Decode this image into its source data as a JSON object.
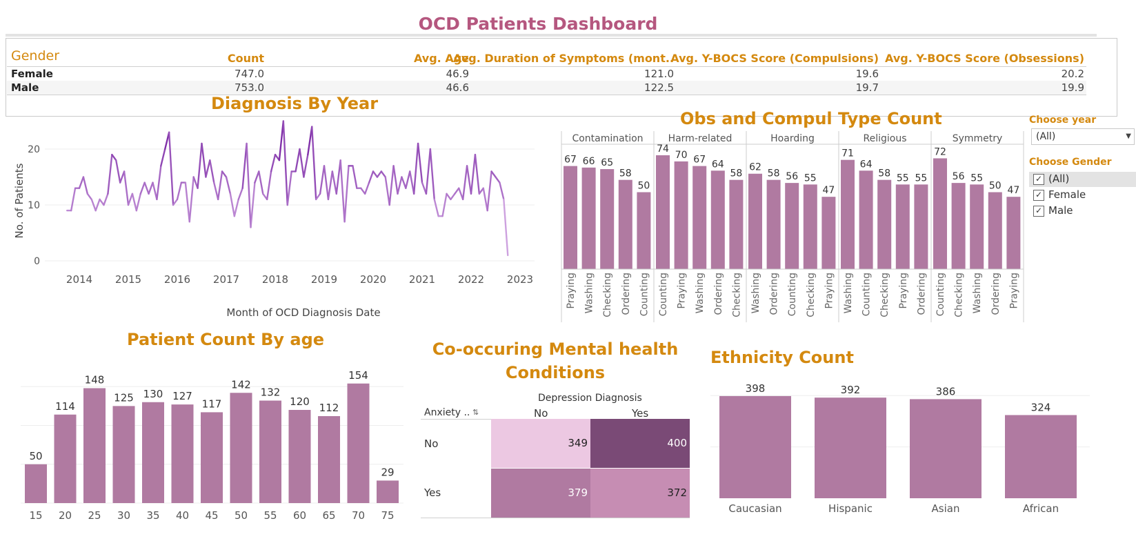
{
  "title": "OCD Patients Dashboard",
  "colors": {
    "accent": "#d4890f",
    "title": "#b5577f",
    "bar": "#b07aa1",
    "line": "#7b2fa0"
  },
  "summary": {
    "gender_header": "Gender",
    "columns": [
      "Count",
      "Avg. Age",
      "Avg. Duration of Symptoms (mont..",
      "Avg. Y-BOCS Score (Compulsions)",
      "Avg. Y-BOCS Score (Obsessions)"
    ],
    "rows": [
      {
        "gender": "Female",
        "count": "747.0",
        "age": "46.9",
        "duration": "121.0",
        "compulsions": "19.6",
        "obsessions": "20.2"
      },
      {
        "gender": "Male",
        "count": "753.0",
        "age": "46.6",
        "duration": "122.5",
        "compulsions": "19.7",
        "obsessions": "19.9"
      }
    ]
  },
  "diagnosis_by_year": {
    "title": "Diagnosis By Year",
    "ylabel": "No. of Patients",
    "xlabel": "Month of OCD Diagnosis Date",
    "y_ticks": [
      "0",
      "10",
      "20"
    ],
    "x_ticks": [
      "2014",
      "2015",
      "2016",
      "2017",
      "2018",
      "2019",
      "2020",
      "2021",
      "2022",
      "2023"
    ]
  },
  "obs_compul": {
    "title": "Obs and Compul Type Count",
    "groups": [
      {
        "name": "Contamination",
        "bars": [
          {
            "label": "Praying",
            "value": 67
          },
          {
            "label": "Washing",
            "value": 66
          },
          {
            "label": "Checking",
            "value": 65
          },
          {
            "label": "Ordering",
            "value": 58
          },
          {
            "label": "Counting",
            "value": 50
          }
        ]
      },
      {
        "name": "Harm-related",
        "bars": [
          {
            "label": "Counting",
            "value": 74
          },
          {
            "label": "Praying",
            "value": 70
          },
          {
            "label": "Washing",
            "value": 67
          },
          {
            "label": "Ordering",
            "value": 64
          },
          {
            "label": "Checking",
            "value": 58
          }
        ]
      },
      {
        "name": "Hoarding",
        "bars": [
          {
            "label": "Washing",
            "value": 62
          },
          {
            "label": "Ordering",
            "value": 58
          },
          {
            "label": "Counting",
            "value": 56
          },
          {
            "label": "Checking",
            "value": 55
          },
          {
            "label": "Praying",
            "value": 47
          }
        ]
      },
      {
        "name": "Religious",
        "bars": [
          {
            "label": "Washing",
            "value": 71
          },
          {
            "label": "Counting",
            "value": 64
          },
          {
            "label": "Checking",
            "value": 58
          },
          {
            "label": "Praying",
            "value": 55
          },
          {
            "label": "Ordering",
            "value": 55
          }
        ]
      },
      {
        "name": "Symmetry",
        "bars": [
          {
            "label": "Counting",
            "value": 72
          },
          {
            "label": "Checking",
            "value": 56
          },
          {
            "label": "Washing",
            "value": 55
          },
          {
            "label": "Ordering",
            "value": 50
          },
          {
            "label": "Praying",
            "value": 47
          }
        ]
      }
    ]
  },
  "filters": {
    "year_title": "Choose year",
    "year_value": "(All)",
    "gender_title": "Choose Gender",
    "gender_options": [
      {
        "label": "(All)",
        "mark": "✓"
      },
      {
        "label": "Female",
        "mark": "✓"
      },
      {
        "label": "Male",
        "mark": "✓"
      }
    ]
  },
  "age_chart": {
    "title": "Patient Count By age",
    "categories": [
      "15",
      "20",
      "25",
      "30",
      "35",
      "40",
      "45",
      "50",
      "55",
      "60",
      "65",
      "70",
      "75"
    ],
    "values": [
      50,
      114,
      148,
      125,
      130,
      127,
      117,
      142,
      132,
      120,
      112,
      154,
      29
    ]
  },
  "cooccur": {
    "title_line1": "Co-occuring Mental health",
    "title_line2": "Conditions",
    "col_header": "Depression Diagnosis",
    "row_header": "Anxiety ..",
    "cols": [
      "No",
      "Yes"
    ],
    "rows": [
      "No",
      "Yes"
    ],
    "values": [
      [
        "349",
        "400"
      ],
      [
        "379",
        "372"
      ]
    ],
    "cell_colors": [
      [
        "#ecc8e2",
        "#7a4a76"
      ],
      [
        "#b07aa1",
        "#c68db3"
      ]
    ]
  },
  "ethnicity": {
    "title": "Ethnicity Count",
    "categories": [
      "Caucasian",
      "Hispanic",
      "Asian",
      "African"
    ],
    "values": [
      398,
      392,
      386,
      324
    ]
  },
  "chart_data": [
    {
      "type": "table",
      "title": "",
      "columns": [
        "Gender",
        "Count",
        "Avg. Age",
        "Avg. Duration of Symptoms (mont..",
        "Avg. Y-BOCS Score (Compulsions)",
        "Avg. Y-BOCS Score (Obsessions)"
      ],
      "rows": [
        [
          "Female",
          747.0,
          46.9,
          121.0,
          19.6,
          20.2
        ],
        [
          "Male",
          753.0,
          46.6,
          122.5,
          19.7,
          19.9
        ]
      ]
    },
    {
      "type": "line",
      "title": "Diagnosis By Year",
      "xlabel": "Month of OCD Diagnosis Date",
      "ylabel": "No. of Patients",
      "x_start": "2013-10",
      "ylim": [
        0,
        25
      ],
      "values": [
        9,
        9,
        13,
        13,
        15,
        12,
        11,
        9,
        11,
        10,
        12,
        19,
        18,
        14,
        16,
        10,
        12,
        9,
        12,
        14,
        12,
        14,
        11,
        17,
        20,
        23,
        10,
        11,
        14,
        14,
        7,
        15,
        13,
        21,
        15,
        18,
        14,
        11,
        16,
        15,
        12,
        8,
        11,
        13,
        21,
        6,
        14,
        16,
        12,
        11,
        16,
        19,
        18,
        25,
        10,
        16,
        16,
        20,
        15,
        19,
        24,
        11,
        12,
        17,
        11,
        16,
        12,
        18,
        7,
        17,
        17,
        13,
        13,
        12,
        14,
        16,
        15,
        16,
        15,
        10,
        17,
        12,
        15,
        13,
        16,
        12,
        21,
        14,
        12,
        20,
        11,
        8,
        8,
        12,
        11,
        12,
        13,
        11,
        17,
        12,
        19,
        12,
        13,
        9,
        16,
        15,
        14,
        11,
        1
      ]
    },
    {
      "type": "bar",
      "title": "Obs and Compul Type Count",
      "groups": [
        "Contamination",
        "Harm-related",
        "Hoarding",
        "Religious",
        "Symmetry"
      ],
      "series": [
        {
          "group": "Contamination",
          "categories": [
            "Praying",
            "Washing",
            "Checking",
            "Ordering",
            "Counting"
          ],
          "values": [
            67,
            66,
            65,
            58,
            50
          ]
        },
        {
          "group": "Harm-related",
          "categories": [
            "Counting",
            "Praying",
            "Washing",
            "Ordering",
            "Checking"
          ],
          "values": [
            74,
            70,
            67,
            64,
            58
          ]
        },
        {
          "group": "Hoarding",
          "categories": [
            "Washing",
            "Ordering",
            "Counting",
            "Checking",
            "Praying"
          ],
          "values": [
            62,
            58,
            56,
            55,
            47
          ]
        },
        {
          "group": "Religious",
          "categories": [
            "Washing",
            "Counting",
            "Checking",
            "Praying",
            "Ordering"
          ],
          "values": [
            71,
            64,
            58,
            55,
            55
          ]
        },
        {
          "group": "Symmetry",
          "categories": [
            "Counting",
            "Checking",
            "Washing",
            "Ordering",
            "Praying"
          ],
          "values": [
            72,
            56,
            55,
            50,
            47
          ]
        }
      ]
    },
    {
      "type": "bar",
      "title": "Patient Count By age",
      "categories": [
        "15",
        "20",
        "25",
        "30",
        "35",
        "40",
        "45",
        "50",
        "55",
        "60",
        "65",
        "70",
        "75"
      ],
      "values": [
        50,
        114,
        148,
        125,
        130,
        127,
        117,
        142,
        132,
        120,
        112,
        154,
        29
      ]
    },
    {
      "type": "heatmap",
      "title": "Co-occuring Mental health Conditions",
      "xlabel": "Depression Diagnosis",
      "ylabel": "Anxiety ..",
      "x": [
        "No",
        "Yes"
      ],
      "y": [
        "No",
        "Yes"
      ],
      "values": [
        [
          349,
          400
        ],
        [
          379,
          372
        ]
      ]
    },
    {
      "type": "bar",
      "title": "Ethnicity Count",
      "categories": [
        "Caucasian",
        "Hispanic",
        "Asian",
        "African"
      ],
      "values": [
        398,
        392,
        386,
        324
      ]
    }
  ]
}
